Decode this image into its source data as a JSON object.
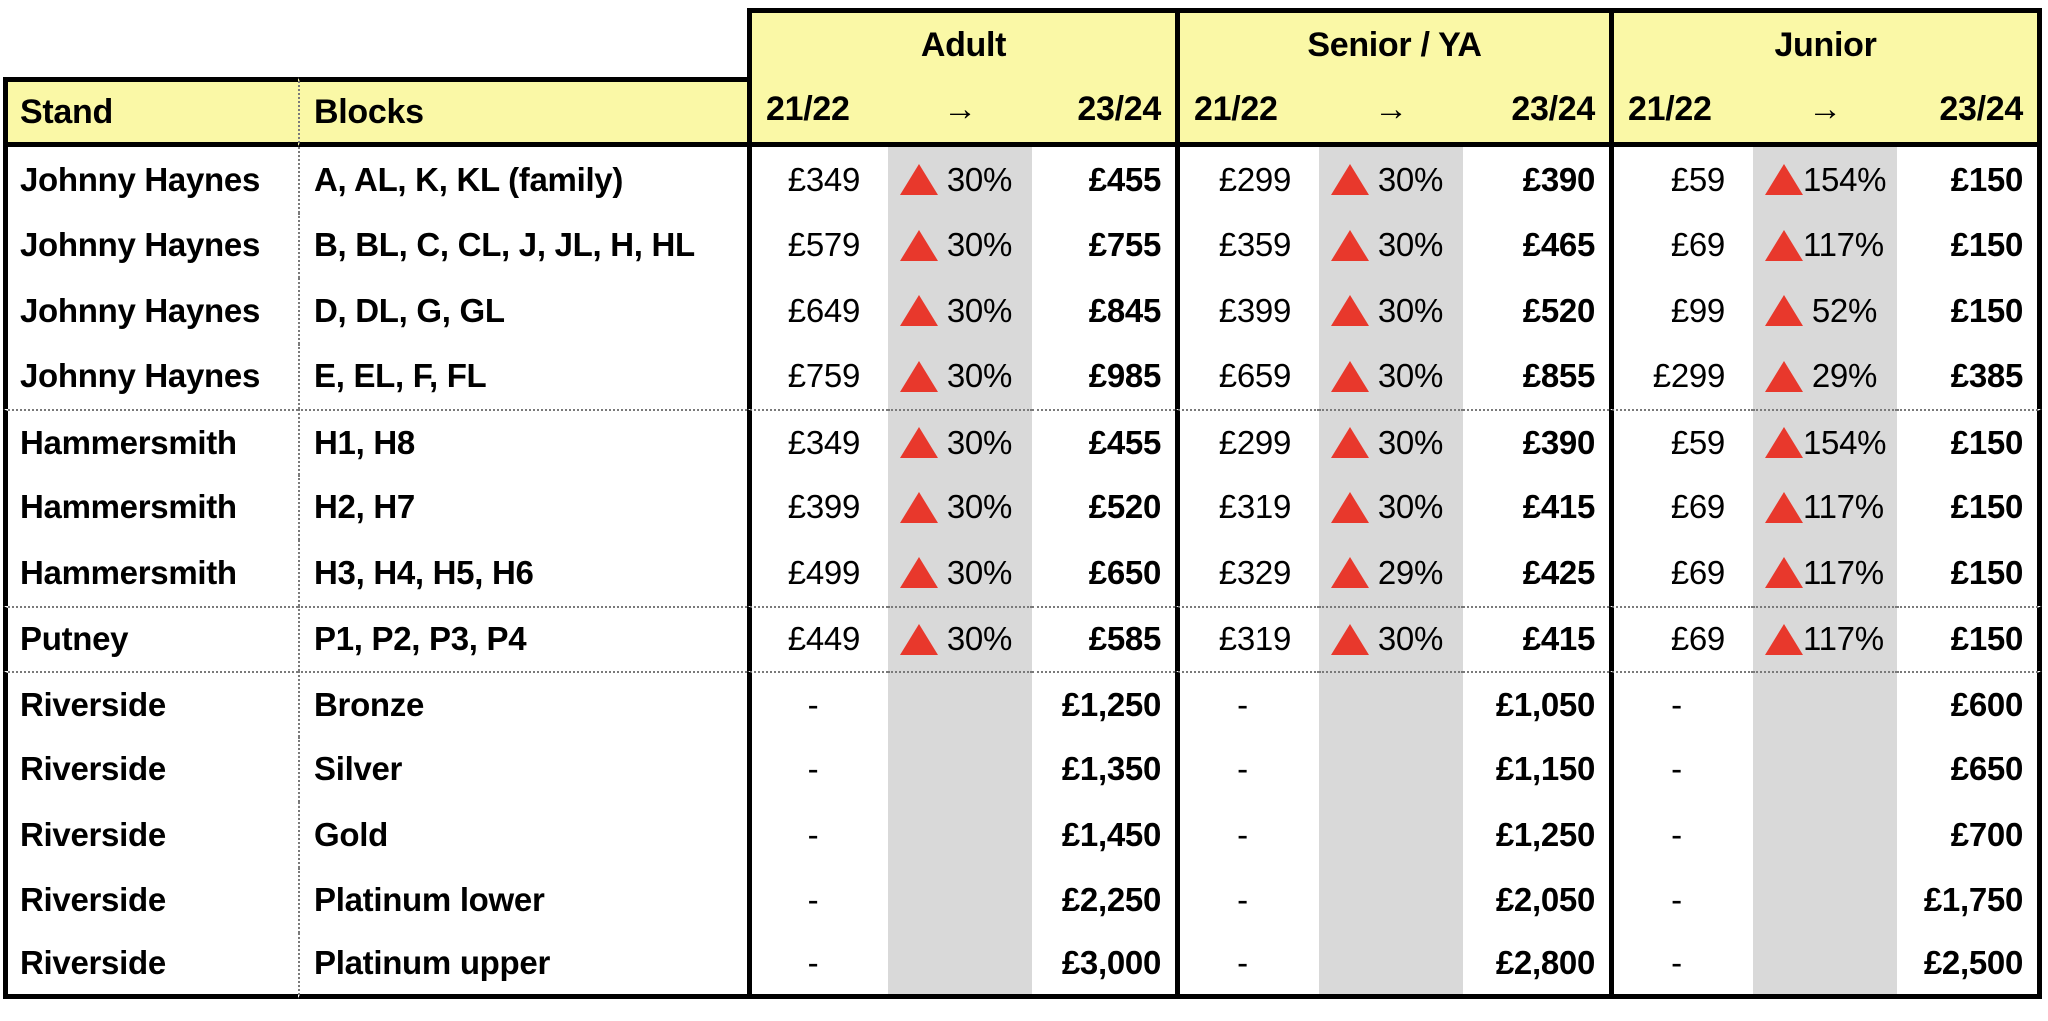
{
  "colors": {
    "header_yellow": "#FAF8A6",
    "band_gray": "#D9D9D9",
    "accent_red": "#E8382C",
    "border_black": "#000000"
  },
  "chart_data": {
    "type": "table",
    "title": "",
    "header": {
      "stand": "Stand",
      "blocks": "Blocks",
      "groups": [
        {
          "title": "Adult",
          "from_label": "21/22",
          "arrow": "→",
          "to_label": "23/24"
        },
        {
          "title": "Senior / YA",
          "from_label": "21/22",
          "arrow": "→",
          "to_label": "23/24"
        },
        {
          "title": "Junior",
          "from_label": "21/22",
          "arrow": "→",
          "to_label": "23/24"
        }
      ]
    },
    "columns": [
      "Stand",
      "Blocks",
      "Adult 21/22",
      "Adult change",
      "Adult 23/24",
      "Senior / YA 21/22",
      "Senior / YA change",
      "Senior / YA 23/24",
      "Junior 21/22",
      "Junior change",
      "Junior 23/24"
    ],
    "rows": [
      {
        "stand": "Johnny Haynes",
        "blocks": "A, AL, K, KL (family)",
        "adult_from": "£349",
        "adult_pct": "30%",
        "adult_to": "£455",
        "senior_from": "£299",
        "senior_pct": "30%",
        "senior_to": "£390",
        "junior_from": "£59",
        "junior_pct": "154%",
        "junior_to": "£150",
        "group_start": false
      },
      {
        "stand": "Johnny Haynes",
        "blocks": "B, BL, C, CL, J, JL, H, HL",
        "adult_from": "£579",
        "adult_pct": "30%",
        "adult_to": "£755",
        "senior_from": "£359",
        "senior_pct": "30%",
        "senior_to": "£465",
        "junior_from": "£69",
        "junior_pct": "117%",
        "junior_to": "£150",
        "group_start": false
      },
      {
        "stand": "Johnny Haynes",
        "blocks": "D, DL, G, GL",
        "adult_from": "£649",
        "adult_pct": "30%",
        "adult_to": "£845",
        "senior_from": "£399",
        "senior_pct": "30%",
        "senior_to": "£520",
        "junior_from": "£99",
        "junior_pct": "52%",
        "junior_to": "£150",
        "group_start": false
      },
      {
        "stand": "Johnny Haynes",
        "blocks": "E, EL, F, FL",
        "adult_from": "£759",
        "adult_pct": "30%",
        "adult_to": "£985",
        "senior_from": "£659",
        "senior_pct": "30%",
        "senior_to": "£855",
        "junior_from": "£299",
        "junior_pct": "29%",
        "junior_to": "£385",
        "group_start": false
      },
      {
        "stand": "Hammersmith",
        "blocks": "H1, H8",
        "adult_from": "£349",
        "adult_pct": "30%",
        "adult_to": "£455",
        "senior_from": "£299",
        "senior_pct": "30%",
        "senior_to": "£390",
        "junior_from": "£59",
        "junior_pct": "154%",
        "junior_to": "£150",
        "group_start": true
      },
      {
        "stand": "Hammersmith",
        "blocks": "H2, H7",
        "adult_from": "£399",
        "adult_pct": "30%",
        "adult_to": "£520",
        "senior_from": "£319",
        "senior_pct": "30%",
        "senior_to": "£415",
        "junior_from": "£69",
        "junior_pct": "117%",
        "junior_to": "£150",
        "group_start": false
      },
      {
        "stand": "Hammersmith",
        "blocks": "H3, H4, H5, H6",
        "adult_from": "£499",
        "adult_pct": "30%",
        "adult_to": "£650",
        "senior_from": "£329",
        "senior_pct": "29%",
        "senior_to": "£425",
        "junior_from": "£69",
        "junior_pct": "117%",
        "junior_to": "£150",
        "group_start": false
      },
      {
        "stand": "Putney",
        "blocks": "P1, P2, P3, P4",
        "adult_from": "£449",
        "adult_pct": "30%",
        "adult_to": "£585",
        "senior_from": "£319",
        "senior_pct": "30%",
        "senior_to": "£415",
        "junior_from": "£69",
        "junior_pct": "117%",
        "junior_to": "£150",
        "group_start": true
      },
      {
        "stand": "Riverside",
        "blocks": "Bronze",
        "adult_from": "-",
        "adult_pct": null,
        "adult_to": "£1,250",
        "senior_from": "-",
        "senior_pct": null,
        "senior_to": "£1,050",
        "junior_from": "-",
        "junior_pct": null,
        "junior_to": "£600",
        "group_start": true
      },
      {
        "stand": "Riverside",
        "blocks": "Silver",
        "adult_from": "-",
        "adult_pct": null,
        "adult_to": "£1,350",
        "senior_from": "-",
        "senior_pct": null,
        "senior_to": "£1,150",
        "junior_from": "-",
        "junior_pct": null,
        "junior_to": "£650",
        "group_start": false
      },
      {
        "stand": "Riverside",
        "blocks": "Gold",
        "adult_from": "-",
        "adult_pct": null,
        "adult_to": "£1,450",
        "senior_from": "-",
        "senior_pct": null,
        "senior_to": "£1,250",
        "junior_from": "-",
        "junior_pct": null,
        "junior_to": "£700",
        "group_start": false
      },
      {
        "stand": "Riverside",
        "blocks": "Platinum lower",
        "adult_from": "-",
        "adult_pct": null,
        "adult_to": "£2,250",
        "senior_from": "-",
        "senior_pct": null,
        "senior_to": "£2,050",
        "junior_from": "-",
        "junior_pct": null,
        "junior_to": "£1,750",
        "group_start": false
      },
      {
        "stand": "Riverside",
        "blocks": "Platinum upper",
        "adult_from": "-",
        "adult_pct": null,
        "adult_to": "£3,000",
        "senior_from": "-",
        "senior_pct": null,
        "senior_to": "£2,800",
        "junior_from": "-",
        "junior_pct": null,
        "junior_to": "£2,500",
        "group_start": false
      }
    ]
  }
}
